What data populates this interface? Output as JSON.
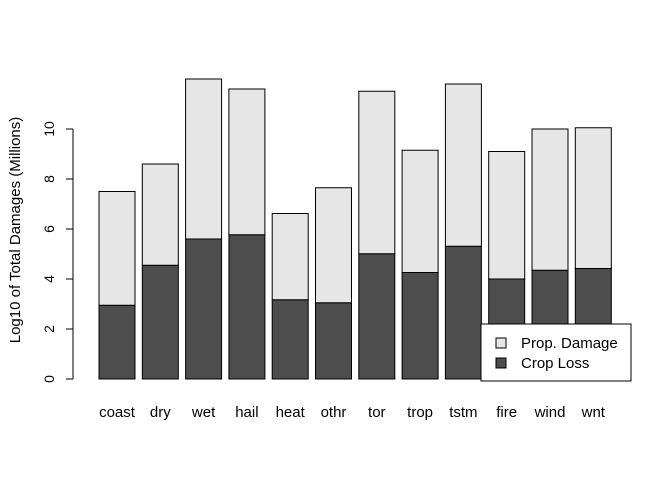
{
  "chart_data": {
    "type": "bar",
    "stacked": true,
    "title": "",
    "xlabel": "",
    "ylabel": "Log10 of Total Damages (Millions)",
    "ylim": [
      0,
      12.4
    ],
    "yticks": [
      0,
      2,
      4,
      6,
      8,
      10
    ],
    "grid": false,
    "legend_position": "bottom-right",
    "categories": [
      "coast",
      "dry",
      "wet",
      "hail",
      "heat",
      "othr",
      "tor",
      "trop",
      "tstm",
      "fire",
      "wind",
      "wnt"
    ],
    "series": [
      {
        "name": "Crop Loss",
        "color": "#4d4d4d",
        "values": [
          2.95,
          4.55,
          5.6,
          5.77,
          3.17,
          3.05,
          5.01,
          4.26,
          5.31,
          4.0,
          4.35,
          4.42
        ]
      },
      {
        "name": "Prop. Damage",
        "color": "#e6e6e6",
        "values": [
          4.55,
          4.05,
          6.4,
          5.83,
          3.45,
          4.6,
          6.5,
          4.89,
          6.49,
          5.1,
          5.65,
          5.63
        ]
      }
    ],
    "legend": [
      "Prop. Damage",
      "Crop Loss"
    ]
  }
}
